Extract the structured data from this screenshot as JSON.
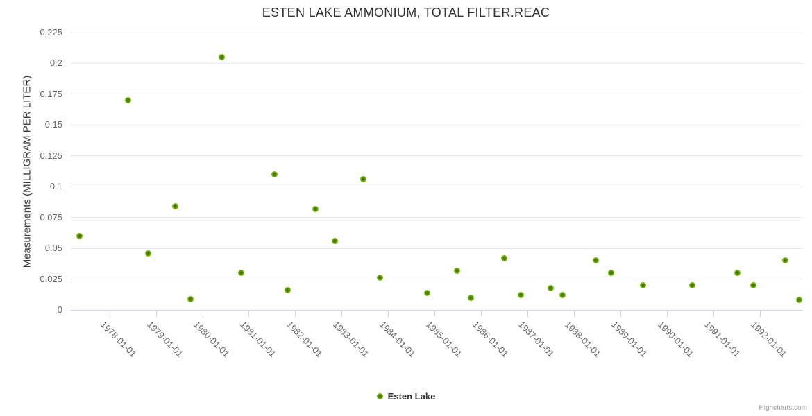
{
  "title": "ESTEN LAKE AMMONIUM, TOTAL FILTER.REAC",
  "legend": {
    "items": [
      {
        "label": "Esten Lake",
        "marker_color": "#77b306"
      }
    ]
  },
  "credit": "Highcharts.com",
  "chart_data": {
    "type": "scatter",
    "title": "ESTEN LAKE AMMONIUM, TOTAL FILTER.REAC",
    "xlabel": "",
    "ylabel": "Measurements (MILLIGRAM PER LITER)",
    "grid": true,
    "legend_position": "bottom",
    "xlim": [
      1977.16,
      1992.91
    ],
    "ylim": [
      0,
      0.225
    ],
    "x_tick_values": [
      1978,
      1979,
      1980,
      1981,
      1982,
      1983,
      1984,
      1985,
      1986,
      1987,
      1988,
      1989,
      1990,
      1991,
      1992
    ],
    "x_tick_labels": [
      "1978-01-01",
      "1979-01-01",
      "1980-01-01",
      "1981-01-01",
      "1982-01-01",
      "1983-01-01",
      "1984-01-01",
      "1985-01-01",
      "1986-01-01",
      "1987-01-01",
      "1988-01-01",
      "1989-01-01",
      "1990-01-01",
      "1991-01-01",
      "1992-01-01"
    ],
    "y_tick_values": [
      0,
      0.025,
      0.05,
      0.075,
      0.1,
      0.125,
      0.15,
      0.175,
      0.2,
      0.225
    ],
    "y_tick_labels": [
      "0",
      "0.025",
      "0.05",
      "0.075",
      "0.1",
      "0.125",
      "0.15",
      "0.175",
      "0.2",
      "0.225"
    ],
    "series": [
      {
        "name": "Esten Lake",
        "color": "#77b306",
        "points": [
          {
            "x": 1977.34,
            "y": 0.06
          },
          {
            "x": 1978.39,
            "y": 0.17
          },
          {
            "x": 1978.82,
            "y": 0.046
          },
          {
            "x": 1979.41,
            "y": 0.084
          },
          {
            "x": 1979.74,
            "y": 0.009
          },
          {
            "x": 1980.41,
            "y": 0.205
          },
          {
            "x": 1980.83,
            "y": 0.03
          },
          {
            "x": 1981.55,
            "y": 0.11
          },
          {
            "x": 1981.83,
            "y": 0.016
          },
          {
            "x": 1982.43,
            "y": 0.082
          },
          {
            "x": 1982.84,
            "y": 0.056
          },
          {
            "x": 1983.46,
            "y": 0.106
          },
          {
            "x": 1983.81,
            "y": 0.026
          },
          {
            "x": 1984.84,
            "y": 0.014
          },
          {
            "x": 1985.47,
            "y": 0.032
          },
          {
            "x": 1985.78,
            "y": 0.01
          },
          {
            "x": 1986.49,
            "y": 0.042
          },
          {
            "x": 1986.85,
            "y": 0.012
          },
          {
            "x": 1987.49,
            "y": 0.018
          },
          {
            "x": 1987.74,
            "y": 0.012
          },
          {
            "x": 1988.46,
            "y": 0.04
          },
          {
            "x": 1988.79,
            "y": 0.03
          },
          {
            "x": 1989.48,
            "y": 0.02
          },
          {
            "x": 1990.54,
            "y": 0.02
          },
          {
            "x": 1991.52,
            "y": 0.03
          },
          {
            "x": 1991.85,
            "y": 0.02
          },
          {
            "x": 1992.54,
            "y": 0.04
          },
          {
            "x": 1992.84,
            "y": 0.008
          }
        ]
      }
    ]
  }
}
